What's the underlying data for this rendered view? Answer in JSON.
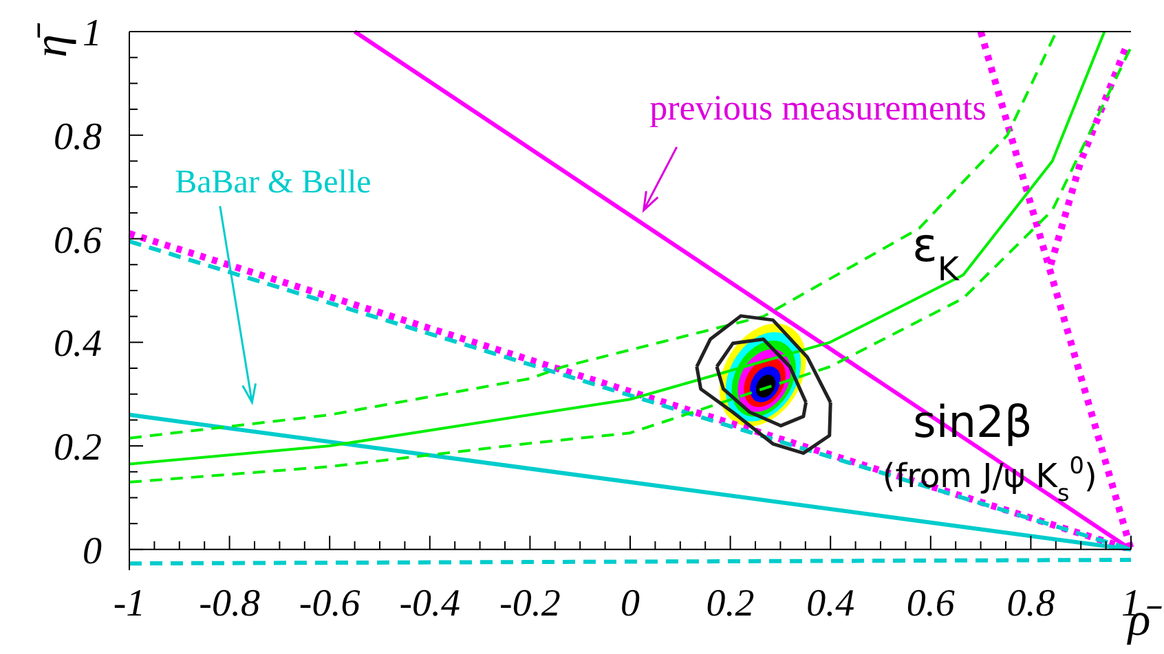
{
  "chart_data": {
    "type": "line",
    "xlabel": "ρ̄",
    "ylabel": "η̄",
    "xlim": [
      -1,
      1
    ],
    "ylim": [
      -0.04,
      1
    ],
    "xticks": [
      -1,
      {
        "value": -0.95,
        "label": null
      },
      {
        "value": -0.9,
        "label": null
      },
      {
        "value": -0.85,
        "label": null
      },
      -0.8,
      {
        "value": -0.75,
        "label": null
      },
      {
        "value": -0.7,
        "label": null
      },
      {
        "value": -0.65,
        "label": null
      },
      -0.6,
      {
        "value": -0.55,
        "label": null
      },
      {
        "value": -0.5,
        "label": null
      },
      {
        "value": -0.45,
        "label": null
      },
      -0.4,
      {
        "value": -0.35,
        "label": null
      },
      {
        "value": -0.3,
        "label": null
      },
      {
        "value": -0.25,
        "label": null
      },
      -0.2,
      {
        "value": -0.15,
        "label": null
      },
      {
        "value": -0.1,
        "label": null
      },
      {
        "value": -0.05,
        "label": null
      },
      0,
      {
        "value": 0.05,
        "label": null
      },
      {
        "value": 0.1,
        "label": null
      },
      {
        "value": 0.15,
        "label": null
      },
      0.2,
      {
        "value": 0.25,
        "label": null
      },
      {
        "value": 0.3,
        "label": null
      },
      {
        "value": 0.35,
        "label": null
      },
      0.4,
      {
        "value": 0.45,
        "label": null
      },
      {
        "value": 0.5,
        "label": null
      },
      {
        "value": 0.55,
        "label": null
      },
      0.6,
      {
        "value": 0.65,
        "label": null
      },
      {
        "value": 0.7,
        "label": null
      },
      {
        "value": 0.75,
        "label": null
      },
      0.8,
      {
        "value": 0.85,
        "label": null
      },
      {
        "value": 0.9,
        "label": null
      },
      {
        "value": 0.95,
        "label": null
      },
      1
    ],
    "yticks": [
      0,
      {
        "value": 0.05,
        "label": null
      },
      {
        "value": 0.1,
        "label": null
      },
      {
        "value": 0.15,
        "label": null
      },
      0.2,
      {
        "value": 0.25,
        "label": null
      },
      {
        "value": 0.3,
        "label": null
      },
      {
        "value": 0.35,
        "label": null
      },
      0.4,
      {
        "value": 0.45,
        "label": null
      },
      {
        "value": 0.5,
        "label": null
      },
      {
        "value": 0.55,
        "label": null
      },
      0.6,
      {
        "value": 0.65,
        "label": null
      },
      {
        "value": 0.7,
        "label": null
      },
      {
        "value": 0.75,
        "label": null
      },
      0.8,
      {
        "value": 0.85,
        "label": null
      },
      {
        "value": 0.9,
        "label": null
      },
      {
        "value": 0.95,
        "label": null
      },
      1
    ],
    "series": [
      {
        "color": "#ff00ff",
        "line_style": "solid",
        "x": [
          -0.55,
          1
        ],
        "values": [
          1,
          0
        ]
      },
      {
        "color": "#ff00ff",
        "line_style": "dotted",
        "x": [
          -1,
          1
        ],
        "values": [
          0.61,
          0
        ]
      },
      {
        "color": "#ff00ff",
        "line_style": "dotted",
        "x": [
          0.7,
          1
        ],
        "values": [
          1,
          0
        ]
      },
      {
        "color": "#ff00ff",
        "line_style": "dotted",
        "x": [
          0.84,
          0.9,
          0.99
        ],
        "values": [
          0.55,
          0.75,
          0.97
        ]
      },
      {
        "color": "#00cccc",
        "line_style": "dashed",
        "x": [
          -1,
          1
        ],
        "values": [
          0.595,
          0
        ]
      },
      {
        "color": "#00cccc",
        "line_style": "solid",
        "x": [
          -1,
          1
        ],
        "values": [
          0.26,
          0
        ]
      },
      {
        "color": "#00cccc",
        "line_style": "dashed",
        "x": [
          -1,
          1
        ],
        "values": [
          -0.027,
          -0.02
        ]
      },
      {
        "color": "#00ee00",
        "line_style": "solid",
        "x": [
          -1,
          -0.6,
          -0.2,
          0,
          0.399,
          0.665,
          0.843,
          0.947
        ],
        "values": [
          0.165,
          0.2,
          0.26,
          0.29,
          0.4,
          0.53,
          0.75,
          1
        ]
      },
      {
        "color": "#00ee00",
        "line_style": "dashed",
        "x": [
          -1,
          -0.6,
          -0.2,
          -0.133,
          0.266,
          0.577,
          0.753,
          0.851
        ],
        "values": [
          0.215,
          0.26,
          0.33,
          0.353,
          0.45,
          0.62,
          0.8,
          1
        ]
      },
      {
        "color": "#00ee00",
        "line_style": "dashed",
        "x": [
          -1,
          -0.6,
          -0.2,
          0,
          0.399,
          0.665,
          0.843,
          1
        ],
        "values": [
          0.13,
          0.16,
          0.205,
          0.225,
          0.353,
          0.485,
          0.655,
          0.97
        ]
      },
      {
        "color": "#222222",
        "line_style": "solid",
        "x": [
          0.133,
          0.16,
          0.221,
          0.285,
          0.354,
          0.4
        ],
        "values": [
          0.353,
          0.406,
          0.451,
          0.443,
          0.371,
          0.284
        ]
      },
      {
        "color": "#222222",
        "line_style": "solid",
        "x": [
          0.133,
          0.141,
          0.205,
          0.285,
          0.346,
          0.398,
          0.4
        ],
        "values": [
          0.353,
          0.31,
          0.265,
          0.204,
          0.186,
          0.22,
          0.284
        ]
      },
      {
        "color": "#222222",
        "line_style": "solid",
        "x": [
          0.173,
          0.205,
          0.266,
          0.319,
          0.351
        ],
        "values": [
          0.353,
          0.398,
          0.406,
          0.353,
          0.284
        ]
      },
      {
        "color": "#222222",
        "line_style": "solid",
        "x": [
          0.173,
          0.186,
          0.239,
          0.301,
          0.346,
          0.351
        ],
        "values": [
          0.353,
          0.31,
          0.265,
          0.239,
          0.257,
          0.284
        ]
      }
    ],
    "annotations": [
      "previous measurements",
      "BaBar & Belle",
      "ε$_{K}$",
      "sin2β",
      "(from J/ψ K$_{s}$$^{0}$)"
    ]
  }
}
